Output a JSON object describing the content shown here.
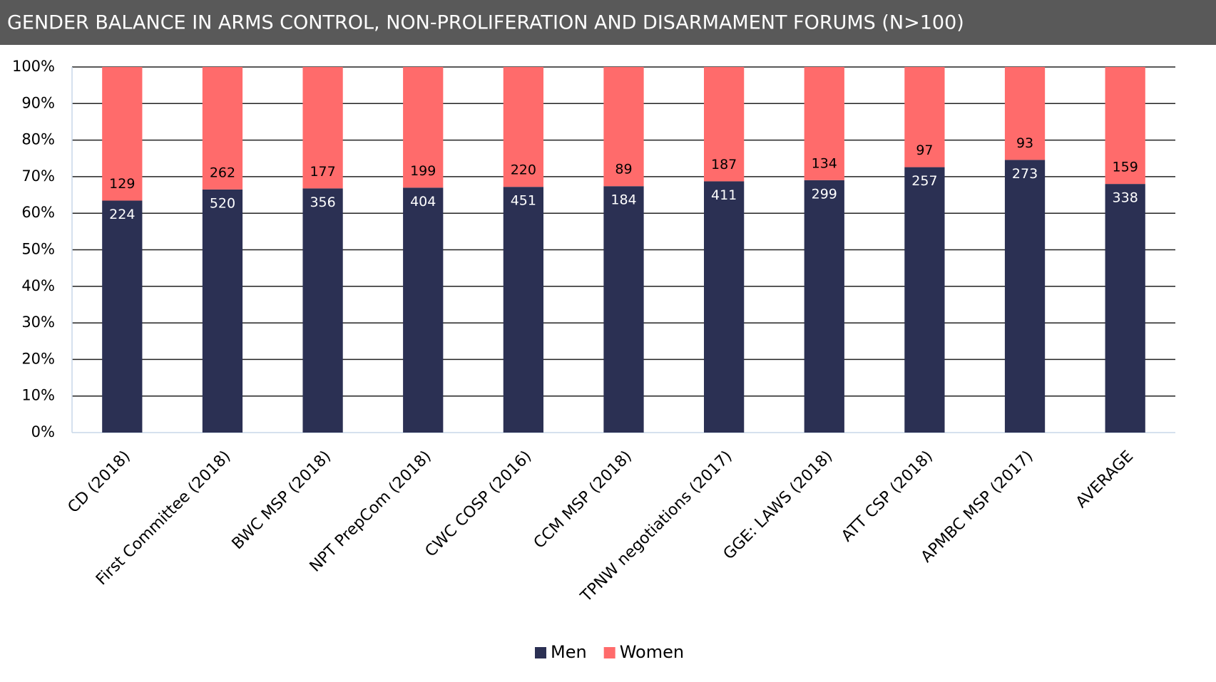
{
  "chart_data": {
    "type": "bar",
    "stacking": "percent",
    "title": "GENDER BALANCE IN ARMS CONTROL, NON-PROLIFERATION AND DISARMAMENT FORUMS (N>100)",
    "categories": [
      "CD (2018)",
      "First Committee (2018)",
      "BWC MSP (2018)",
      "NPT PrepCom (2018)",
      "CWC COSP (2016)",
      "CCM MSP (2018)",
      "TPNW negotiations (2017)",
      "GGE: LAWS (2018)",
      "ATT CSP (2018)",
      "APMBC MSP (2017)",
      "AVERAGE"
    ],
    "series": [
      {
        "name": "Men",
        "color": "#2b3053",
        "values": [
          224,
          520,
          356,
          404,
          451,
          184,
          411,
          299,
          257,
          273,
          338
        ]
      },
      {
        "name": "Women",
        "color": "#ff6b6b",
        "values": [
          129,
          262,
          177,
          199,
          220,
          89,
          187,
          134,
          97,
          93,
          159
        ]
      }
    ],
    "ylim": [
      0,
      100
    ],
    "yticks": [
      {
        "value": 0,
        "label": "0%"
      },
      {
        "value": 10,
        "label": "10%"
      },
      {
        "value": 20,
        "label": "20%"
      },
      {
        "value": 30,
        "label": "30%"
      },
      {
        "value": 40,
        "label": "40%"
      },
      {
        "value": 50,
        "label": "50%"
      },
      {
        "value": 60,
        "label": "60%"
      },
      {
        "value": 70,
        "label": "70%"
      },
      {
        "value": 80,
        "label": "80%"
      },
      {
        "value": 90,
        "label": "90%"
      },
      {
        "value": 100,
        "label": "100%"
      }
    ],
    "grid": true,
    "legend": "bottom"
  }
}
